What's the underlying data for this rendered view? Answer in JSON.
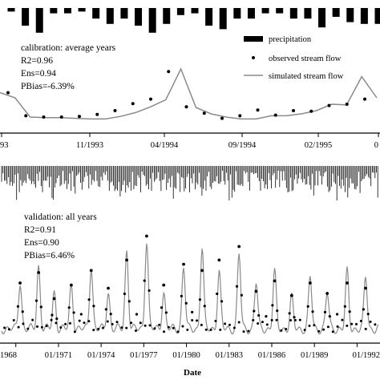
{
  "colors": {
    "precip": "#000000",
    "simulated": "#8a8a8a",
    "observed": "#000000"
  },
  "legend": {
    "precipitation": "precipitation",
    "observed": "observed stream flow",
    "simulated": "simulated stream flow"
  },
  "calibration": {
    "title": "calibration: average years",
    "r2": "R2=0.96",
    "ens": "Ens=0.94",
    "pbias": "PBias=-6.39%"
  },
  "validation": {
    "title": "validation: all years",
    "r2": "R2=0.91",
    "ens": "Ens=0.90",
    "pbias": "PBias=6.46%"
  },
  "xlabel": "Date",
  "chart_data": [
    {
      "type": "line",
      "name": "calibration: average years",
      "xticks": [
        "93",
        "11/1993",
        "04/1994",
        "09/1994",
        "02/1995",
        "0"
      ],
      "precipitation": [
        0.1,
        0.5,
        0.7,
        0.15,
        0.15,
        0.1,
        0.3,
        0.45,
        0.3,
        0.5,
        0.7,
        0.45,
        0.2,
        0.15,
        0.5,
        0.6,
        0.3,
        0.3,
        0.15,
        0.15,
        0.3,
        0.3,
        0.55,
        0.25,
        0.4,
        0.45,
        0.45
      ],
      "observed": [
        0.53,
        0.17,
        0.15,
        0.15,
        0.16,
        0.19,
        0.25,
        0.36,
        0.43,
        0.86,
        0.31,
        0.21,
        0.13,
        0.17,
        0.26,
        0.18,
        0.25,
        0.24,
        0.33,
        0.35,
        0.43
      ],
      "simulated": [
        0.53,
        0.45,
        0.15,
        0.14,
        0.14,
        0.13,
        0.12,
        0.12,
        0.16,
        0.22,
        0.31,
        0.42,
        0.9,
        0.3,
        0.2,
        0.15,
        0.12,
        0.12,
        0.17,
        0.17,
        0.2,
        0.25,
        0.35,
        0.34,
        0.78,
        0.45
      ]
    },
    {
      "type": "line",
      "name": "validation: all years",
      "xticks": [
        "1968",
        "01/1971",
        "01/1974",
        "01/1977",
        "01/1980",
        "01/1983",
        "01/1986",
        "01/1989",
        "01/1992"
      ],
      "peaks": [
        {
          "date": 1968.3,
          "sim": 0.45,
          "obs": 0.5
        },
        {
          "date": 1969.6,
          "sim": 0.6,
          "obs": 0.6
        },
        {
          "date": 1970.7,
          "sim": 0.35,
          "obs": 0.35
        },
        {
          "date": 1971.9,
          "sim": 0.42,
          "obs": 0.48
        },
        {
          "date": 1973.3,
          "sim": 0.6,
          "obs": 0.62
        },
        {
          "date": 1974.5,
          "sim": 0.35,
          "obs": 0.45
        },
        {
          "date": 1975.8,
          "sim": 0.75,
          "obs": 0.72
        },
        {
          "date": 1977.2,
          "sim": 0.85,
          "obs": 0.95
        },
        {
          "date": 1978.4,
          "sim": 0.35,
          "obs": 0.48
        },
        {
          "date": 1979.8,
          "sim": 0.6,
          "obs": 0.68
        },
        {
          "date": 1981.1,
          "sim": 0.78,
          "obs": 0.62
        },
        {
          "date": 1982.3,
          "sim": 0.55,
          "obs": 0.72
        },
        {
          "date": 1983.7,
          "sim": 0.72,
          "obs": 0.85
        },
        {
          "date": 1984.9,
          "sim": 0.45,
          "obs": 0.42
        },
        {
          "date": 1986.2,
          "sim": 0.55,
          "obs": 0.52
        },
        {
          "date": 1987.4,
          "sim": 0.3,
          "obs": 0.38
        },
        {
          "date": 1988.7,
          "sim": 0.5,
          "obs": 0.5
        },
        {
          "date": 1989.9,
          "sim": 0.35,
          "obs": 0.4
        },
        {
          "date": 1991.3,
          "sim": 0.55,
          "obs": 0.5
        },
        {
          "date": 1992.6,
          "sim": 0.5,
          "obs": 0.45
        }
      ],
      "precip_seed": 7,
      "observed_extra": [
        {
          "date": 1972.6,
          "obs": 0.2
        },
        {
          "date": 1976.5,
          "obs": 0.2
        },
        {
          "date": 1980.4,
          "obs": 0.22
        },
        {
          "date": 1985.6,
          "obs": 0.18
        },
        {
          "date": 1990.6,
          "obs": 0.2
        }
      ]
    }
  ]
}
